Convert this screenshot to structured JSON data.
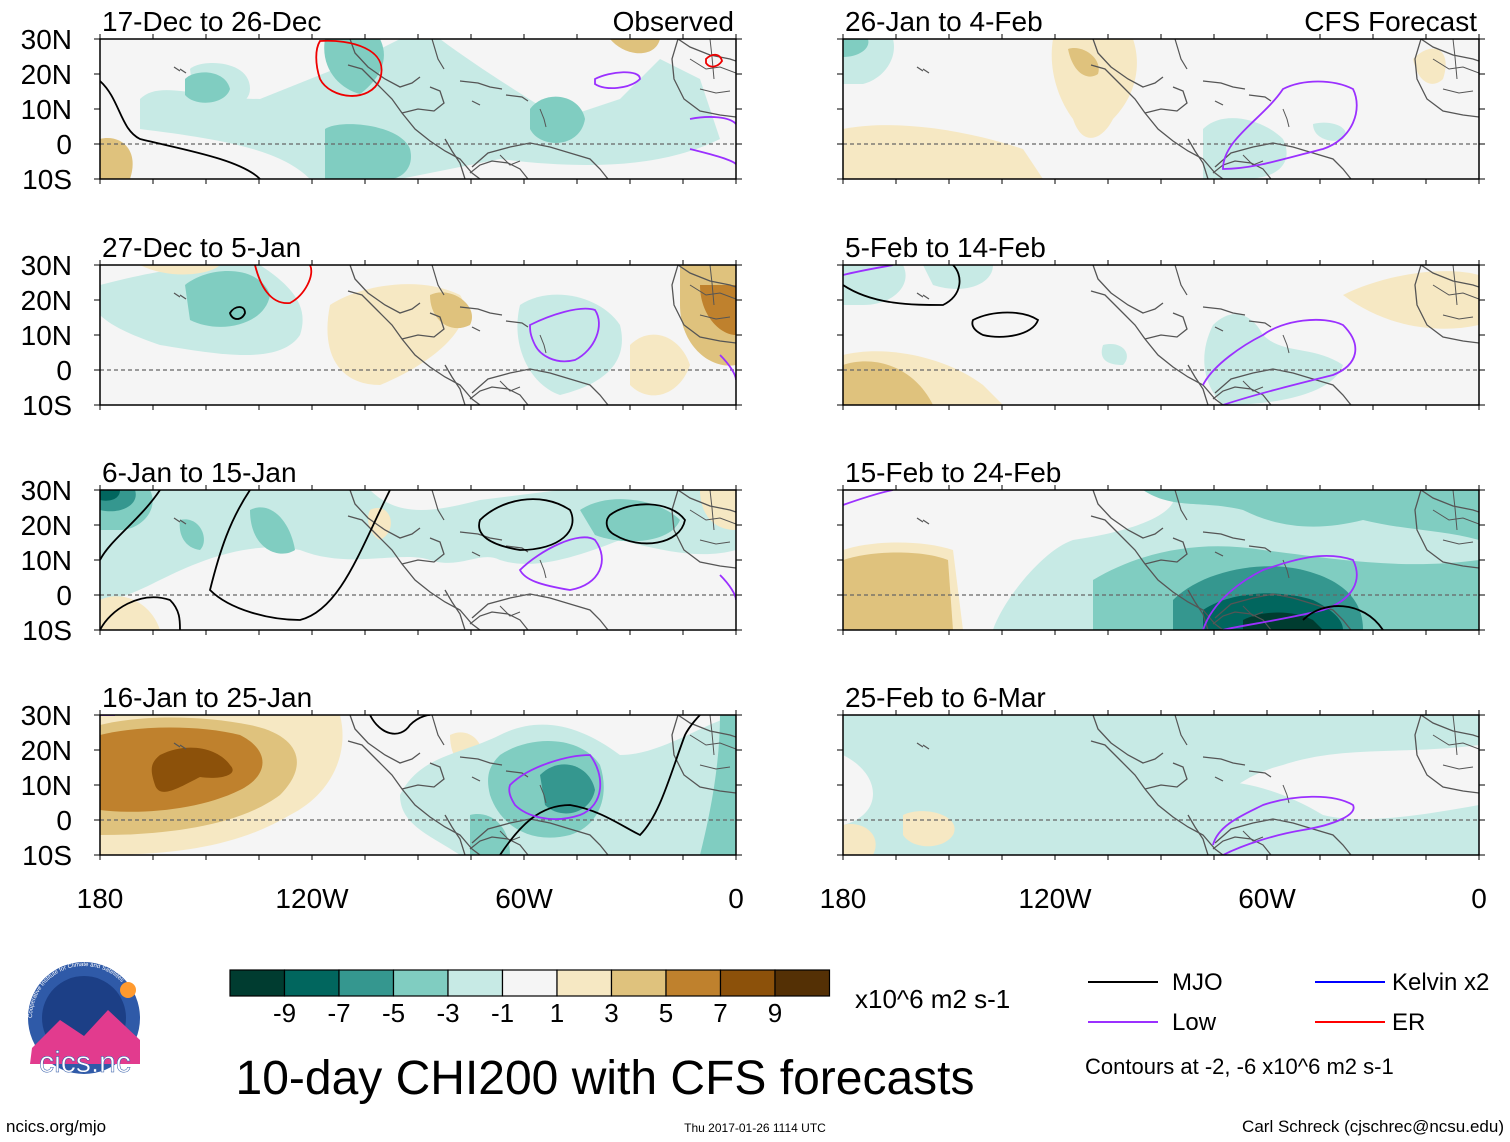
{
  "left_column_label": "Observed",
  "right_column_label": "CFS Forecast",
  "panels": [
    {
      "title": "17-Dec to 26-Dec"
    },
    {
      "title": "27-Dec to 5-Jan"
    },
    {
      "title": "6-Jan to 15-Jan"
    },
    {
      "title": "16-Jan to 25-Jan"
    },
    {
      "title": "26-Jan to 4-Feb"
    },
    {
      "title": "5-Feb to 14-Feb"
    },
    {
      "title": "15-Feb to 24-Feb"
    },
    {
      "title": "25-Feb to 6-Mar"
    }
  ],
  "lat_labels": [
    "30N",
    "20N",
    "10N",
    "0",
    "10S"
  ],
  "lon_labels": [
    "180",
    "120W",
    "60W",
    "0"
  ],
  "colorbar": {
    "colors": [
      "#003c30",
      "#01665e",
      "#35978f",
      "#80cdc1",
      "#c7eae5",
      "#f5f5f5",
      "#f6e8c3",
      "#dfc27d",
      "#bf812d",
      "#8c510a",
      "#543005"
    ],
    "tick_labels": [
      "-9",
      "-7",
      "-5",
      "-3",
      "-1",
      "1",
      "3",
      "5",
      "7",
      "9"
    ],
    "units": "x10^6 m2 s-1"
  },
  "legend": {
    "items": [
      {
        "label": "MJO",
        "color": "#000000"
      },
      {
        "label": "Kelvin x2",
        "color": "#0000ff"
      },
      {
        "label": "Low",
        "color": "#9b30ff"
      },
      {
        "label": "ER",
        "color": "#ff0000"
      }
    ],
    "note": "Contours at -2, -6 x10^6 m2 s-1"
  },
  "main_title": "10-day CHI200 with CFS forecasts",
  "footer": {
    "left": "ncics.org/mjo",
    "center": "Thu 2017-01-26 1114 UTC",
    "right": "Carl Schreck (cjschrec@ncsu.edu)"
  },
  "logo": {
    "text": "cics.nc",
    "ring_text": "Cooperative Institute for Climate and Satellites"
  }
}
